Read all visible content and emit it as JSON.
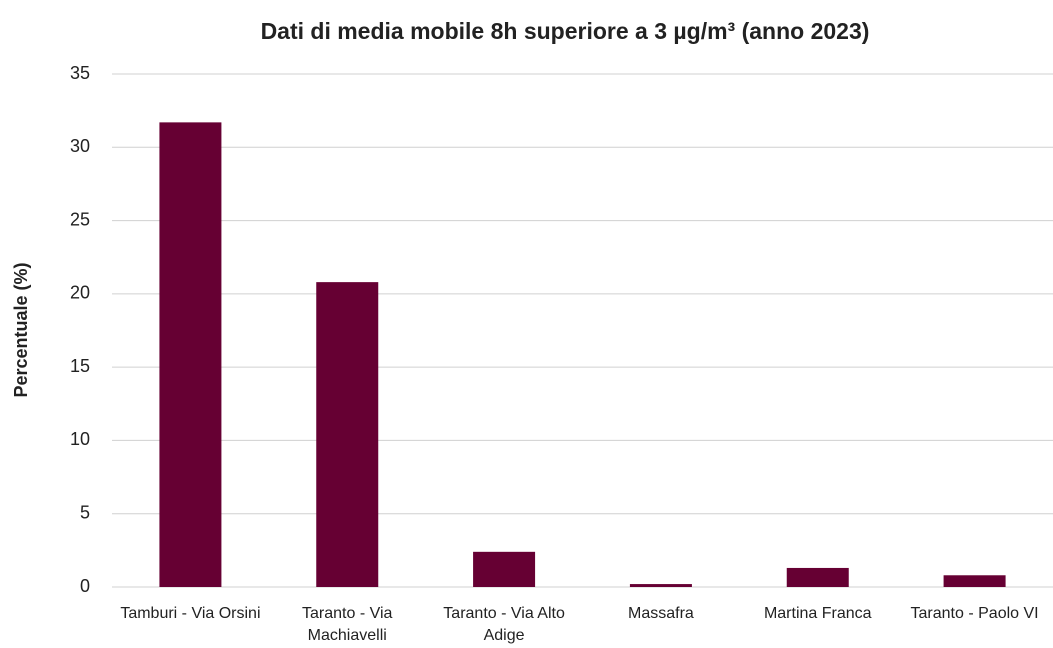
{
  "chart_data": {
    "type": "bar",
    "title": "Dati di media mobile 8h superiore a 3 µg/m³ (anno 2023)",
    "y_label": "Percentuale (%)",
    "categories": [
      "Tamburi - Via Orsini",
      "Taranto - Via Machiavelli",
      "Taranto - Via Alto Adige",
      "Massafra",
      "Martina Franca",
      "Taranto - Paolo VI"
    ],
    "values": [
      31.7,
      20.8,
      2.4,
      0.2,
      1.3,
      0.8
    ],
    "color": "#660033",
    "ylim": [
      0,
      35
    ],
    "yticks": [
      0,
      5,
      10,
      15,
      20,
      25,
      30,
      35
    ],
    "grid": true
  }
}
